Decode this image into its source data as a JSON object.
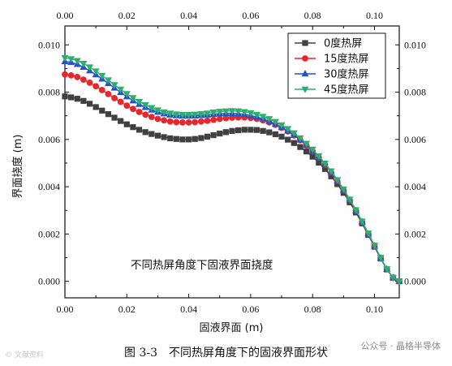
{
  "chart_data": {
    "type": "line",
    "title": "不同热屏角度下固液界面挠度",
    "xlabel": "固液界面 (m)",
    "ylabel": "界面挠度 (m)",
    "xlim": [
      0,
      0.108
    ],
    "ylim": [
      -0.0007,
      0.0108
    ],
    "xticks": [
      0,
      0.02,
      0.04,
      0.06,
      0.08,
      0.1
    ],
    "xtick_labels": [
      "0.00",
      "0.02",
      "0.04",
      "0.06",
      "0.08",
      "0.10"
    ],
    "yticks": [
      0,
      0.002,
      0.004,
      0.006,
      0.008,
      0.01
    ],
    "ytick_labels": [
      "0.000",
      "0.002",
      "0.004",
      "0.006",
      "0.008",
      "0.010"
    ],
    "mirror_axes": true,
    "grid": false,
    "legend_position": "top-right",
    "x": [
      0.0,
      0.002,
      0.004,
      0.006,
      0.008,
      0.01,
      0.012,
      0.014,
      0.016,
      0.018,
      0.02,
      0.022,
      0.024,
      0.026,
      0.028,
      0.03,
      0.032,
      0.034,
      0.036,
      0.038,
      0.04,
      0.042,
      0.044,
      0.046,
      0.048,
      0.05,
      0.052,
      0.054,
      0.056,
      0.058,
      0.06,
      0.062,
      0.064,
      0.066,
      0.068,
      0.07,
      0.072,
      0.074,
      0.076,
      0.078,
      0.08,
      0.082,
      0.084,
      0.086,
      0.088,
      0.09,
      0.092,
      0.094,
      0.096,
      0.098,
      0.1,
      0.102,
      0.104,
      0.106,
      0.108
    ],
    "series": [
      {
        "name": "0度热屏",
        "color": "#404040",
        "marker": "square",
        "values": [
          0.00782,
          0.00778,
          0.00772,
          0.00763,
          0.00751,
          0.00737,
          0.00722,
          0.00707,
          0.00692,
          0.00678,
          0.00664,
          0.00652,
          0.00641,
          0.00631,
          0.00623,
          0.00616,
          0.0061,
          0.00605,
          0.00602,
          0.006,
          0.006,
          0.00602,
          0.00606,
          0.00612,
          0.00618,
          0.00625,
          0.00631,
          0.00636,
          0.00639,
          0.00641,
          0.00641,
          0.0064,
          0.00636,
          0.0063,
          0.00622,
          0.00612,
          0.00599,
          0.00585,
          0.00568,
          0.00549,
          0.00527,
          0.00502,
          0.00475,
          0.00444,
          0.00411,
          0.00374,
          0.00334,
          0.00291,
          0.00245,
          0.00196,
          0.00146,
          0.00096,
          0.0005,
          0.00015,
          0.0
        ]
      },
      {
        "name": "15度热屏",
        "color": "#e8262b",
        "marker": "circle",
        "values": [
          0.00875,
          0.00871,
          0.00864,
          0.00853,
          0.0084,
          0.00825,
          0.00809,
          0.00792,
          0.00775,
          0.00759,
          0.00743,
          0.00729,
          0.00716,
          0.00705,
          0.00695,
          0.00687,
          0.00681,
          0.00676,
          0.00673,
          0.00672,
          0.00672,
          0.00673,
          0.00676,
          0.00679,
          0.00683,
          0.00687,
          0.0069,
          0.00692,
          0.00693,
          0.00693,
          0.00691,
          0.00687,
          0.00681,
          0.00672,
          0.00662,
          0.00649,
          0.00634,
          0.00617,
          0.00597,
          0.00575,
          0.0055,
          0.00523,
          0.00493,
          0.0046,
          0.00424,
          0.00385,
          0.00343,
          0.00298,
          0.0025,
          0.002,
          0.00149,
          0.00098,
          0.00051,
          0.00015,
          0.0
        ]
      },
      {
        "name": "30度热屏",
        "color": "#2453c9",
        "marker": "triangle-up",
        "values": [
          0.0093,
          0.00926,
          0.00918,
          0.00906,
          0.00891,
          0.00874,
          0.00856,
          0.00837,
          0.00818,
          0.00799,
          0.00781,
          0.00764,
          0.00749,
          0.00736,
          0.00725,
          0.00716,
          0.00709,
          0.00704,
          0.00701,
          0.00699,
          0.00699,
          0.007,
          0.00702,
          0.00704,
          0.00707,
          0.00709,
          0.0071,
          0.0071,
          0.00709,
          0.00706,
          0.00701,
          0.00695,
          0.00687,
          0.00677,
          0.00665,
          0.00651,
          0.00636,
          0.00618,
          0.00598,
          0.00576,
          0.00551,
          0.00524,
          0.00494,
          0.00461,
          0.00425,
          0.00386,
          0.00344,
          0.00299,
          0.00251,
          0.00201,
          0.0015,
          0.00099,
          0.00052,
          0.00015,
          0.0
        ]
      },
      {
        "name": "45度热屏",
        "color": "#2fae6e",
        "marker": "triangle-down",
        "values": [
          0.00945,
          0.00941,
          0.00933,
          0.00921,
          0.00906,
          0.00889,
          0.0087,
          0.00851,
          0.00831,
          0.00812,
          0.00793,
          0.00776,
          0.0076,
          0.00746,
          0.00734,
          0.00724,
          0.00716,
          0.00711,
          0.00707,
          0.00705,
          0.00705,
          0.00706,
          0.00708,
          0.00711,
          0.00715,
          0.00718,
          0.0072,
          0.00721,
          0.0072,
          0.00717,
          0.00712,
          0.00705,
          0.00697,
          0.00687,
          0.00675,
          0.00661,
          0.00645,
          0.00627,
          0.00606,
          0.00583,
          0.00558,
          0.0053,
          0.00499,
          0.00466,
          0.00429,
          0.0039,
          0.00347,
          0.00302,
          0.00254,
          0.00203,
          0.00152,
          0.001,
          0.00052,
          0.00015,
          0.0
        ]
      }
    ]
  },
  "caption": "图 3-3　不同热屏角度下的固液界面形状",
  "watermark_left": "© 文献资料",
  "watermark_right": "公众号 · 晶格半导体"
}
